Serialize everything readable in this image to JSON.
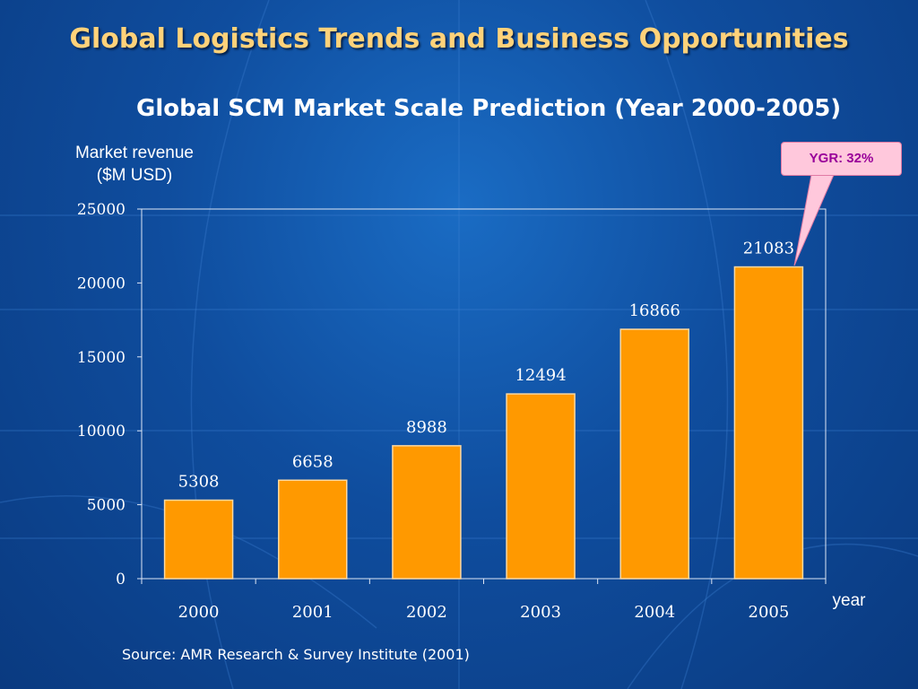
{
  "slide": {
    "title": "Global Logistics Trends and Business Opportunities",
    "subtitle": "Global SCM Market Scale Prediction (Year 2000-2005)",
    "ylabel_line1": "Market revenue",
    "ylabel_line2": "($M USD)",
    "source": "Source: AMR Research & Survey Institute (2001)",
    "callout": "YGR: 32%"
  },
  "colors": {
    "bar": "#ff9900",
    "bar_border": "#ffd9a0",
    "axis": "#dde6f5",
    "text": "#ffffff",
    "title": "#ffd27a",
    "callout_bg": "#ffc8dc",
    "callout_text": "#990099"
  },
  "chart_data": {
    "type": "bar",
    "categories": [
      "2000",
      "2001",
      "2002",
      "2003",
      "2004",
      "2005"
    ],
    "values": [
      5308,
      6658,
      8988,
      12494,
      16866,
      21083
    ],
    "title": "Global SCM Market Scale Prediction (Year 2000-2005)",
    "ylabel": "Market revenue ($M USD)",
    "xlabel": "year",
    "ylim": [
      0,
      25000
    ],
    "yticks": [
      0,
      5000,
      10000,
      15000,
      20000,
      25000
    ],
    "grid": false,
    "data_labels": true
  }
}
